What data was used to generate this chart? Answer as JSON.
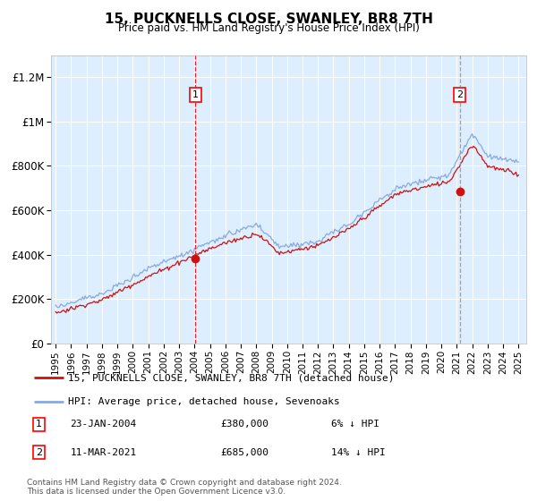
{
  "title": "15, PUCKNELLS CLOSE, SWANLEY, BR8 7TH",
  "subtitle": "Price paid vs. HM Land Registry's House Price Index (HPI)",
  "ylim": [
    0,
    1300000
  ],
  "yticks": [
    0,
    200000,
    400000,
    600000,
    800000,
    1000000,
    1200000
  ],
  "ytick_labels": [
    "£0",
    "£200K",
    "£400K",
    "£600K",
    "£800K",
    "£1M",
    "£1.2M"
  ],
  "bg_color": "#ddeeff",
  "hpi_color": "#88aadd",
  "price_color": "#cc1111",
  "sale1_x": 2004.06,
  "sale1_y": 380000,
  "sale2_x": 2021.19,
  "sale2_y": 685000,
  "marker1_date": "23-JAN-2004",
  "marker1_price": "£380,000",
  "marker1_pct": "6% ↓ HPI",
  "marker2_date": "11-MAR-2021",
  "marker2_price": "£685,000",
  "marker2_pct": "14% ↓ HPI",
  "legend_line1": "15, PUCKNELLS CLOSE, SWANLEY, BR8 7TH (detached house)",
  "legend_line2": "HPI: Average price, detached house, Sevenoaks",
  "footnote": "Contains HM Land Registry data © Crown copyright and database right 2024.\nThis data is licensed under the Open Government Licence v3.0.",
  "xtick_years": [
    1995,
    1996,
    1997,
    1998,
    1999,
    2000,
    2001,
    2002,
    2003,
    2004,
    2005,
    2006,
    2007,
    2008,
    2009,
    2010,
    2011,
    2012,
    2013,
    2014,
    2015,
    2016,
    2017,
    2018,
    2019,
    2020,
    2021,
    2022,
    2023,
    2024,
    2025
  ]
}
